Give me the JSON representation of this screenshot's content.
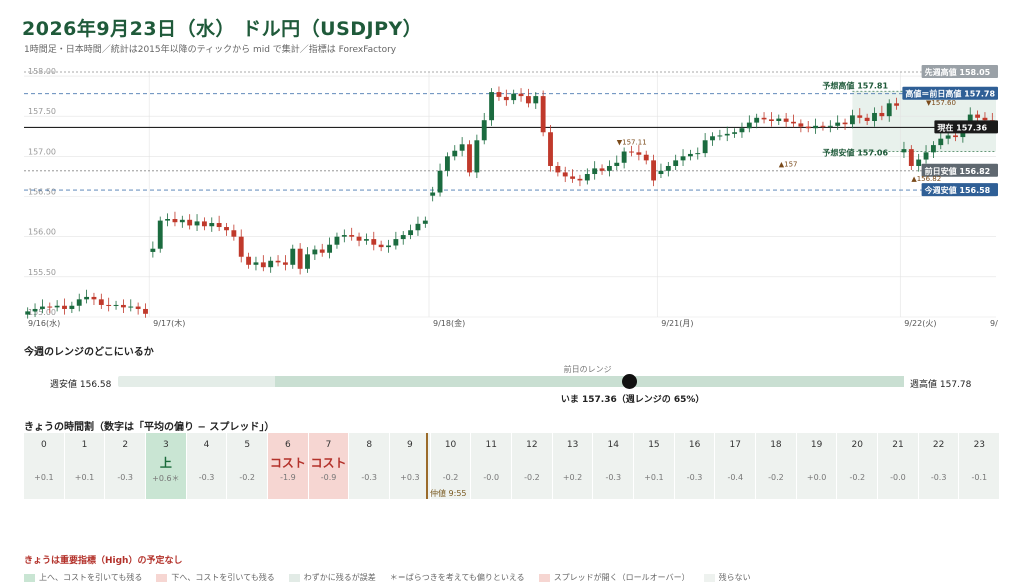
{
  "header": {
    "title": "2026年9月23日（水） ドル円（USDJPY）",
    "subtitle": "1時間足・日本時間／統計は2015年以降のティックから mid で集計／指標は ForexFactory"
  },
  "chart_data": {
    "type": "candlestick",
    "ylim": [
      155.0,
      158.05
    ],
    "y_ticks": [
      "158.00",
      "157.50",
      "157.00",
      "156.50",
      "156.00",
      "155.50",
      "155.00"
    ],
    "x_labels": [
      "9/16(水)",
      "9/17(木)",
      "9/18(金)",
      "9/21(月)",
      "9/22(火)",
      "9/"
    ],
    "colors": {
      "up": "#1b6b3f",
      "down": "#c0392b",
      "grid": "#e3e3e3"
    },
    "closes": [
      155.07,
      155.1,
      155.13,
      155.12,
      155.14,
      155.1,
      155.14,
      155.22,
      155.25,
      155.22,
      155.15,
      155.14,
      155.15,
      155.12,
      155.13,
      155.1,
      155.04,
      155.85,
      156.2,
      156.22,
      156.18,
      156.21,
      156.14,
      156.19,
      156.13,
      156.17,
      156.12,
      156.08,
      156.0,
      155.75,
      155.65,
      155.68,
      155.62,
      155.7,
      155.68,
      155.65,
      155.85,
      155.6,
      155.78,
      155.84,
      155.8,
      155.9,
      156.0,
      156.02,
      156.0,
      155.95,
      155.97,
      155.9,
      155.87,
      155.89,
      155.97,
      156.02,
      156.08,
      156.16,
      156.2,
      156.55,
      156.82,
      157.0,
      157.07,
      157.15,
      156.8,
      157.2,
      157.45,
      157.8,
      157.74,
      157.7,
      157.78,
      157.75,
      157.66,
      157.75,
      157.3,
      156.88,
      156.8,
      156.75,
      156.72,
      156.7,
      156.78,
      156.85,
      156.82,
      156.88,
      156.92,
      157.06,
      157.05,
      157.02,
      156.95,
      156.7,
      156.82,
      156.88,
      156.95,
      157.0,
      157.03,
      157.04,
      157.2,
      157.25,
      157.26,
      157.28,
      157.3,
      157.35,
      157.42,
      157.48,
      157.46,
      157.44,
      157.47,
      157.43,
      157.41,
      157.37,
      157.35,
      157.38,
      157.37,
      157.38,
      157.42,
      157.4,
      157.51,
      157.48,
      157.44,
      157.54,
      157.5,
      157.66,
      157.63,
      157.09,
      156.88,
      156.96,
      157.05,
      157.14,
      157.22,
      157.26,
      157.24,
      157.36,
      157.52,
      157.48,
      157.45,
      157.36
    ],
    "gaps": [
      17,
      55,
      86,
      119
    ],
    "levels": [
      {
        "label": "先週高値 158.05",
        "value": 158.05,
        "kind": "prev-week-high"
      },
      {
        "label": "高値＝前日高値 157.78",
        "value": 157.78,
        "kind": "prev-day-high"
      },
      {
        "label": "現在 157.36",
        "value": 157.36,
        "kind": "current"
      },
      {
        "label": "前日安値 156.82",
        "value": 156.82,
        "kind": "prev-day-low"
      },
      {
        "label": "今週安値 156.58",
        "value": 156.58,
        "kind": "week-low"
      }
    ],
    "forecast": {
      "high_label": "予想高値 157.81",
      "low_label": "予想安値 157.06",
      "high": 157.81,
      "low": 157.06
    },
    "annotations": [
      {
        "text": "▼157.11",
        "value": 157.11
      },
      {
        "text": "▲156.82",
        "value": 156.82
      },
      {
        "text": "▼157.60",
        "value": 157.6
      },
      {
        "text": "▲157",
        "value": 157.0
      }
    ]
  },
  "range_section": {
    "title": "今週のレンジのどこにいるか",
    "week_low_label": "週安値 156.58",
    "week_high_label": "週高値 157.78",
    "prev_range_label": "前日のレンジ",
    "week_low": 156.58,
    "week_high": 157.78,
    "prev_low": 156.82,
    "prev_high": 157.78,
    "current": 157.36,
    "now_label": "いま 157.36（週レンジの 65%）"
  },
  "hours_section": {
    "title": "きょうの時間割（数字は「平均の偏り − スプレッド」）",
    "hours": [
      {
        "hour": "0",
        "value": "+0.1",
        "mark": "",
        "kind": "neutral"
      },
      {
        "hour": "1",
        "value": "+0.1",
        "mark": "",
        "kind": "neutral"
      },
      {
        "hour": "2",
        "value": "-0.3",
        "mark": "",
        "kind": "neutral"
      },
      {
        "hour": "3",
        "value": "+0.6＊",
        "mark": "上",
        "kind": "up"
      },
      {
        "hour": "4",
        "value": "-0.3",
        "mark": "",
        "kind": "neutral"
      },
      {
        "hour": "5",
        "value": "-0.2",
        "mark": "",
        "kind": "neutral"
      },
      {
        "hour": "6",
        "value": "-1.9",
        "mark": "コスト",
        "kind": "cost"
      },
      {
        "hour": "7",
        "value": "-0.9",
        "mark": "コスト",
        "kind": "cost"
      },
      {
        "hour": "8",
        "value": "-0.3",
        "mark": "",
        "kind": "neutral"
      },
      {
        "hour": "9",
        "value": "+0.3",
        "mark": "",
        "kind": "neutral"
      },
      {
        "hour": "10",
        "value": "-0.2",
        "mark": "",
        "kind": "neutral"
      },
      {
        "hour": "11",
        "value": "-0.0",
        "mark": "",
        "kind": "neutral"
      },
      {
        "hour": "12",
        "value": "-0.2",
        "mark": "",
        "kind": "neutral"
      },
      {
        "hour": "13",
        "value": "+0.2",
        "mark": "",
        "kind": "neutral"
      },
      {
        "hour": "14",
        "value": "-0.3",
        "mark": "",
        "kind": "neutral"
      },
      {
        "hour": "15",
        "value": "+0.1",
        "mark": "",
        "kind": "neutral"
      },
      {
        "hour": "16",
        "value": "-0.3",
        "mark": "",
        "kind": "neutral"
      },
      {
        "hour": "17",
        "value": "-0.4",
        "mark": "",
        "kind": "neutral"
      },
      {
        "hour": "18",
        "value": "-0.2",
        "mark": "",
        "kind": "neutral"
      },
      {
        "hour": "19",
        "value": "+0.0",
        "mark": "",
        "kind": "neutral"
      },
      {
        "hour": "20",
        "value": "-0.2",
        "mark": "",
        "kind": "neutral"
      },
      {
        "hour": "21",
        "value": "-0.0",
        "mark": "",
        "kind": "neutral"
      },
      {
        "hour": "22",
        "value": "-0.3",
        "mark": "",
        "kind": "neutral"
      },
      {
        "hour": "23",
        "value": "-0.1",
        "mark": "",
        "kind": "neutral"
      }
    ],
    "nakane_label": "仲値 9:55"
  },
  "notice": "きょうは重要指標（High）の予定なし",
  "legend": [
    {
      "label": "上へ、コストを引いても残る",
      "color": "#c9e5d3"
    },
    {
      "label": "下へ、コストを引いても残る",
      "color": "#f6d6d2"
    },
    {
      "label": "わずかに残るが誤差",
      "color": "#e2ebe6"
    },
    {
      "label": "＊＝ばらつきを考えても偏りといえる",
      "color": ""
    },
    {
      "label": "スプレッドが開く（ロールオーバー）",
      "color": "#f6d6d2"
    },
    {
      "label": "残らない",
      "color": "#eef2ef"
    }
  ]
}
